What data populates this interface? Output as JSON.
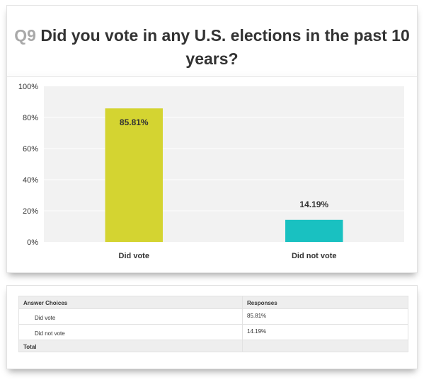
{
  "question": {
    "number": "Q9",
    "text": "Did you vote in any U.S. elections in the past 10 years?"
  },
  "colors": {
    "background": "#ffffff",
    "plot_background": "#f2f2f2",
    "gridline": "#ffffff",
    "bar_did_vote": "#d4d431",
    "bar_did_not_vote": "#19c1c1",
    "question_number": "#a9a9a9",
    "text": "#333333",
    "table_header_background": "#eeeeee"
  },
  "chart_data": {
    "type": "bar",
    "categories": [
      "Did vote",
      "Did not vote"
    ],
    "values": [
      85.81,
      14.19
    ],
    "data_labels": [
      "85.81%",
      "14.19%"
    ],
    "yticks": [
      "0%",
      "20%",
      "40%",
      "60%",
      "80%",
      "100%"
    ],
    "ylim": [
      0,
      100
    ],
    "grid": true,
    "legend": "none"
  },
  "table": {
    "headers": [
      "Answer Choices",
      "Responses"
    ],
    "rows": [
      {
        "choice": "Did vote",
        "response": "85.81%"
      },
      {
        "choice": "Did not vote",
        "response": "14.19%"
      }
    ],
    "total_label": "Total",
    "total_value": ""
  }
}
